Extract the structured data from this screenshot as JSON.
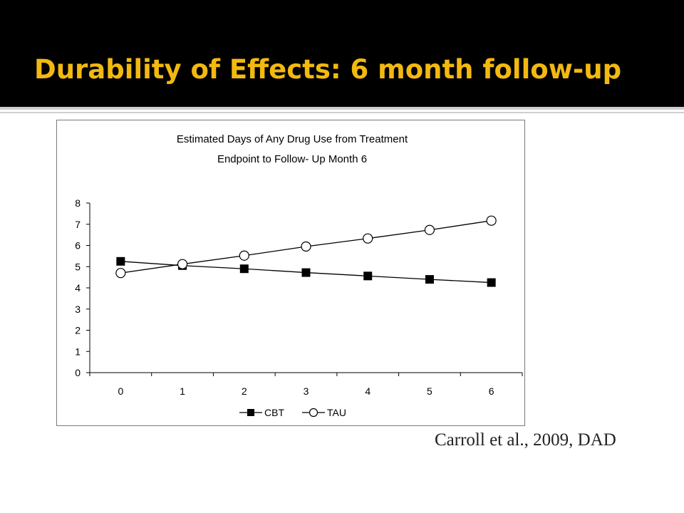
{
  "slide": {
    "title": "Durability of Effects: 6 month follow-up",
    "citation": "Carroll et al., 2009, DAD",
    "title_color": "#f2b90f",
    "header_bg": "#000000"
  },
  "chart_data": {
    "type": "line",
    "title_lines": [
      "Estimated Days of Any Drug Use from Treatment",
      "Endpoint to Follow- Up Month 6"
    ],
    "categories": [
      "0",
      "1",
      "2",
      "3",
      "4",
      "5",
      "6"
    ],
    "x": [
      0,
      1,
      2,
      3,
      4,
      5,
      6
    ],
    "y_ticks": [
      "0",
      "1",
      "2",
      "3",
      "4",
      "5",
      "6",
      "7",
      "8"
    ],
    "ylim": [
      0,
      8
    ],
    "xlabel": "",
    "ylabel": "",
    "grid": false,
    "legend_position": "bottom",
    "series": [
      {
        "name": "CBT",
        "marker": "filled-square",
        "values": [
          5.25,
          5.05,
          4.9,
          4.72,
          4.56,
          4.4,
          4.25
        ]
      },
      {
        "name": "TAU",
        "marker": "open-circle",
        "values": [
          4.7,
          5.12,
          5.52,
          5.95,
          6.33,
          6.73,
          7.17
        ]
      }
    ]
  }
}
